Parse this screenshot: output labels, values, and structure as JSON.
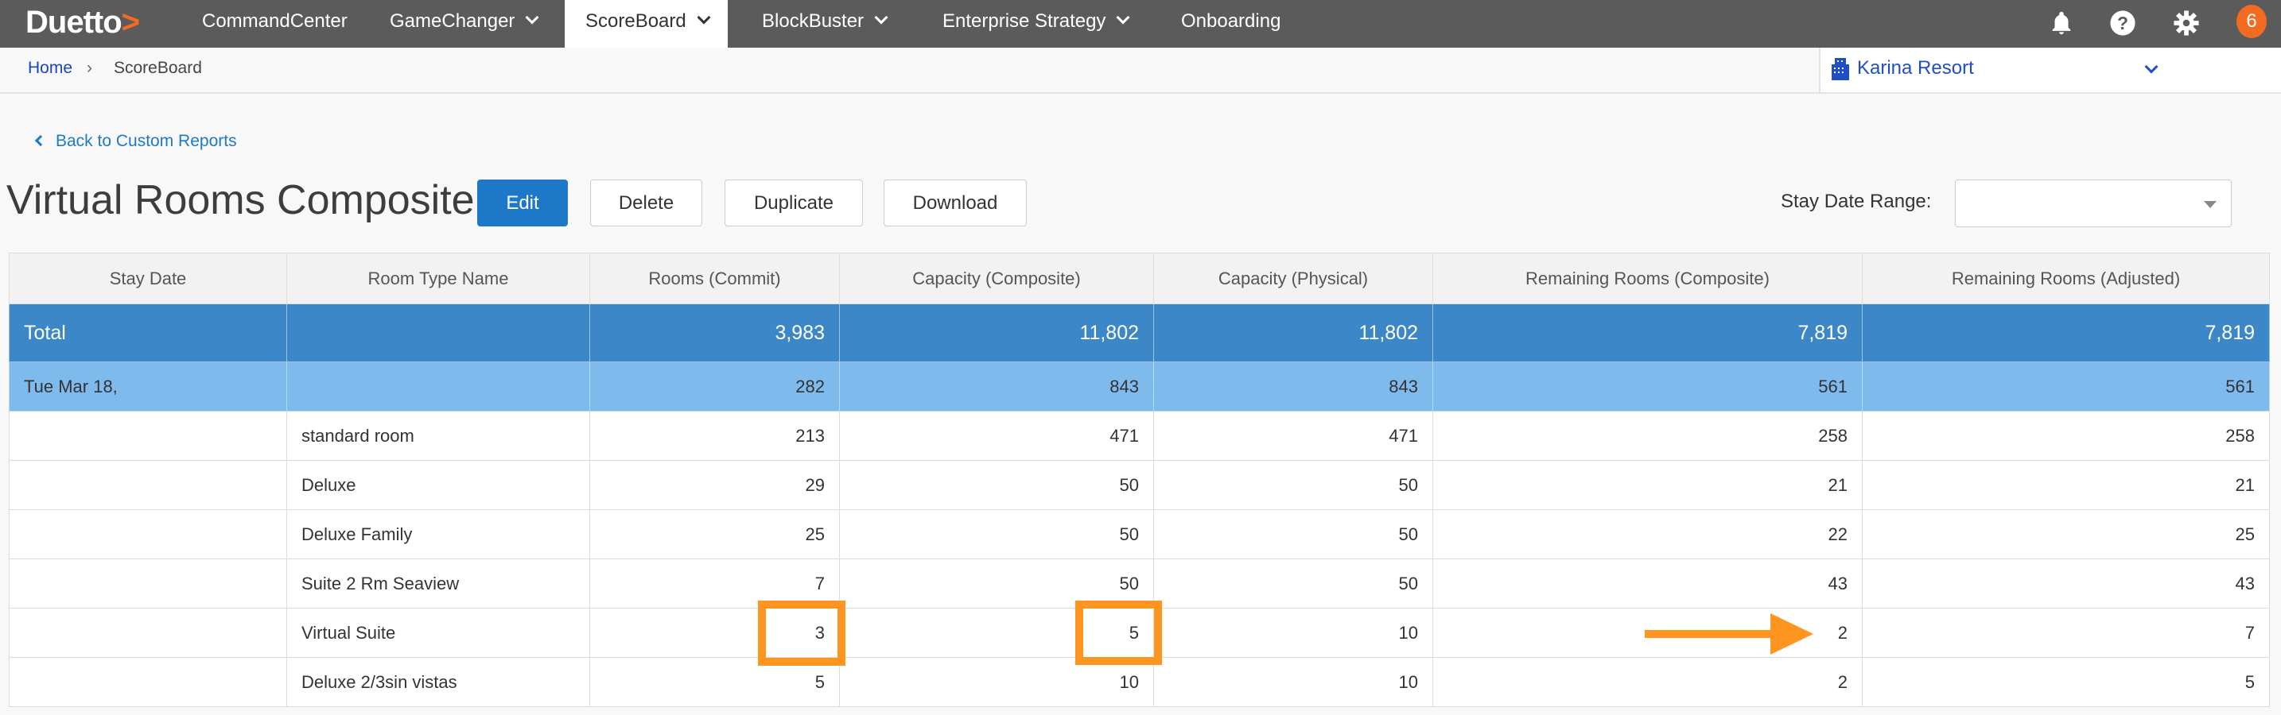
{
  "nav": {
    "logo": "Duetto",
    "items": [
      {
        "label": "CommandCenter"
      },
      {
        "label": "GameChanger"
      },
      {
        "label": "ScoreBoard"
      },
      {
        "label": "BlockBuster"
      },
      {
        "label": "Enterprise Strategy"
      },
      {
        "label": "Onboarding"
      }
    ],
    "badge": "6"
  },
  "breadcrumb": {
    "home": "Home",
    "sep": "›",
    "current": "ScoreBoard"
  },
  "property": {
    "name": "Karina Resort"
  },
  "back_link": "Back to Custom Reports",
  "title": "Virtual Rooms Composite",
  "buttons": {
    "edit": "Edit",
    "delete": "Delete",
    "duplicate": "Duplicate",
    "download": "Download"
  },
  "filter": {
    "label": "Stay Date Range:",
    "value": ""
  },
  "table": {
    "headers": [
      "Stay Date",
      "Room Type Name",
      "Rooms (Commit)",
      "Capacity (Composite)",
      "Capacity (Physical)",
      "Remaining Rooms (Composite)",
      "Remaining Rooms (Adjusted)"
    ],
    "total": [
      "Total",
      "",
      "3,983",
      "11,802",
      "11,802",
      "7,819",
      "7,819"
    ],
    "date_row": [
      "Tue Mar 18,",
      "",
      "282",
      "843",
      "843",
      "561",
      "561"
    ],
    "rows": [
      [
        "",
        "standard room",
        "213",
        "471",
        "471",
        "258",
        "258"
      ],
      [
        "",
        "Deluxe",
        "29",
        "50",
        "50",
        "21",
        "21"
      ],
      [
        "",
        "Deluxe Family",
        "25",
        "50",
        "50",
        "22",
        "25"
      ],
      [
        "",
        "Suite 2 Rm Seaview",
        "7",
        "50",
        "50",
        "43",
        "43"
      ],
      [
        "",
        "Virtual Suite",
        "3",
        "5",
        "10",
        "2",
        "7"
      ],
      [
        "",
        "Deluxe 2/3sin vistas",
        "5",
        "10",
        "10",
        "2",
        "5"
      ]
    ]
  },
  "colors": {
    "highlight": "#ff9521",
    "total_row": "#3c87c8",
    "date_row": "#7fbaed",
    "accent": "#1e78c8"
  }
}
